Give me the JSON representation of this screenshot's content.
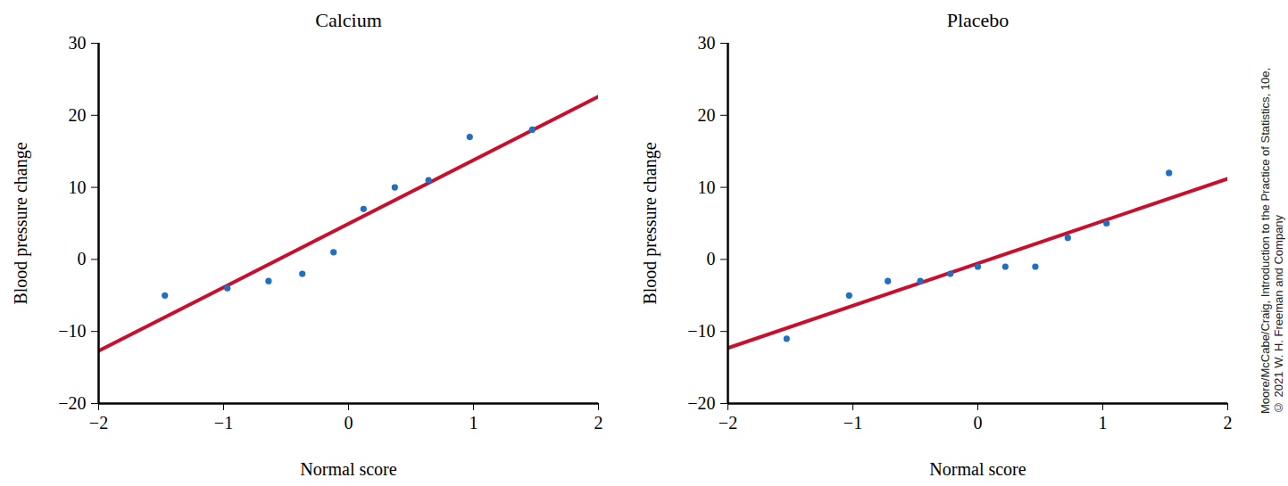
{
  "chart_data": [
    {
      "type": "scatter",
      "title": "Calcium",
      "x_label": "Normal score",
      "y_label": "Blood pressure change",
      "xlim": [
        -2,
        2
      ],
      "xticks": [
        -2,
        -1,
        0,
        1,
        2
      ],
      "ylim": [
        -20,
        30
      ],
      "yticks": [
        -20,
        -10,
        0,
        10,
        20,
        30
      ],
      "series": [
        {
          "type": "line",
          "color": "#c8102e",
          "line_style": "solid",
          "x": [
            -2,
            2
          ],
          "values": [
            -12.7,
            22.6
          ]
        },
        {
          "type": "scatter",
          "color": "#1f6fc2",
          "marker": "circle",
          "x": [
            -1.47,
            -0.97,
            -0.64,
            -0.37,
            -0.12,
            0.12,
            0.37,
            0.64,
            0.97,
            1.47
          ],
          "values": [
            -5,
            -4,
            -3,
            -2,
            1,
            7,
            10,
            11,
            17,
            18
          ]
        }
      ]
    },
    {
      "type": "scatter",
      "title": "Placebo",
      "x_label": "Normal score",
      "y_label": "Blood pressure change",
      "xlim": [
        -2,
        2
      ],
      "xticks": [
        -2,
        -1,
        0,
        1,
        2
      ],
      "ylim": [
        -20,
        30
      ],
      "yticks": [
        -20,
        -10,
        0,
        10,
        20,
        30
      ],
      "series": [
        {
          "type": "line",
          "color": "#c8102e",
          "line_style": "solid",
          "x": [
            -2,
            2
          ],
          "values": [
            -12.3,
            11.2
          ]
        },
        {
          "type": "scatter",
          "color": "#1f6fc2",
          "marker": "circle",
          "x": [
            -1.53,
            -1.03,
            -0.72,
            -0.46,
            -0.22,
            0,
            0.22,
            0.46,
            0.72,
            1.03,
            1.53
          ],
          "values": [
            -11,
            -5,
            -3,
            -3,
            -2,
            -1,
            -1,
            -1,
            3,
            5,
            12
          ]
        }
      ]
    }
  ],
  "source": [
    "Moore/McCabe/Craig, Introduction to the Practice of Statistics, 10e,",
    "© 2021 W. H. Freeman and Company"
  ]
}
